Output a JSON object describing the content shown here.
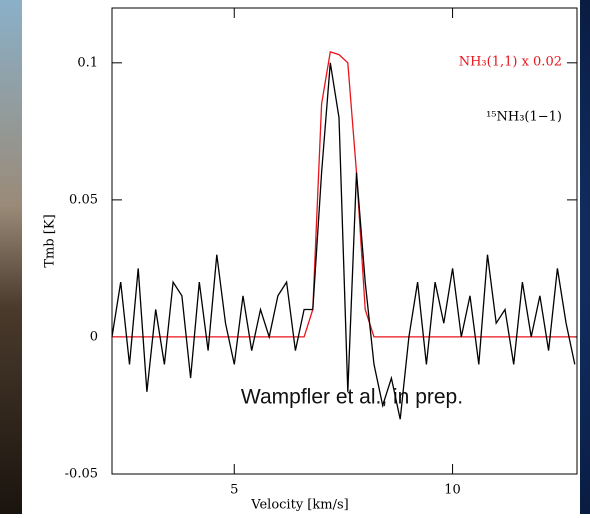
{
  "chart_data": {
    "type": "line",
    "x": [
      2.2,
      2.4,
      2.6,
      2.8,
      3.0,
      3.2,
      3.4,
      3.6,
      3.8,
      4.0,
      4.2,
      4.4,
      4.6,
      4.8,
      5.0,
      5.2,
      5.4,
      5.6,
      5.8,
      6.0,
      6.2,
      6.4,
      6.6,
      6.8,
      7.0,
      7.2,
      7.4,
      7.6,
      7.8,
      8.0,
      8.2,
      8.4,
      8.6,
      8.8,
      9.0,
      9.2,
      9.4,
      9.6,
      9.8,
      10.0,
      10.2,
      10.4,
      10.6,
      10.8,
      11.0,
      11.2,
      11.4,
      11.6,
      11.8,
      12.0,
      12.2,
      12.4,
      12.6,
      12.8
    ],
    "series": [
      {
        "name": "NH₃(1,1) x 0.02",
        "color": "#e8141c",
        "values": [
          0,
          0,
          0,
          0,
          0,
          0,
          0,
          0,
          0,
          0,
          0,
          0,
          0,
          0,
          0,
          0,
          0,
          0,
          0,
          0,
          0,
          0,
          0,
          0.01,
          0.085,
          0.104,
          0.103,
          0.1,
          0.06,
          0.01,
          0,
          0,
          0,
          0,
          0,
          0,
          0,
          0,
          0,
          0,
          0,
          0,
          0,
          0,
          0,
          0,
          0,
          0,
          0,
          0,
          0,
          0,
          0,
          0
        ]
      },
      {
        "name": "¹⁵NH₃(1−1)",
        "color": "#000000",
        "values": [
          0,
          0.02,
          -0.01,
          0.025,
          -0.02,
          0.01,
          -0.01,
          0.02,
          0.015,
          -0.015,
          0.02,
          -0.005,
          0.03,
          0.005,
          -0.01,
          0.015,
          -0.005,
          0.01,
          0,
          0.015,
          0.02,
          -0.005,
          0.01,
          0.01,
          0.06,
          0.1,
          0.08,
          -0.02,
          0.06,
          0.02,
          -0.01,
          -0.025,
          -0.015,
          -0.03,
          0,
          0.02,
          -0.01,
          0.02,
          0.005,
          0.025,
          0,
          0.015,
          -0.01,
          0.03,
          0.005,
          0.01,
          -0.01,
          0.02,
          0,
          0.015,
          -0.005,
          0.025,
          0.005,
          -0.01
        ]
      }
    ],
    "xlabel": "Velocity [km/s]",
    "ylabel": "Tmb [K]",
    "annotation": "Wampfler et al., in prep.",
    "xlim": [
      2.2,
      12.85
    ],
    "ylim": [
      -0.05,
      0.12
    ],
    "xticks": [
      5,
      10
    ],
    "yticks": [
      -0.05,
      0,
      0.05,
      0.1
    ]
  }
}
